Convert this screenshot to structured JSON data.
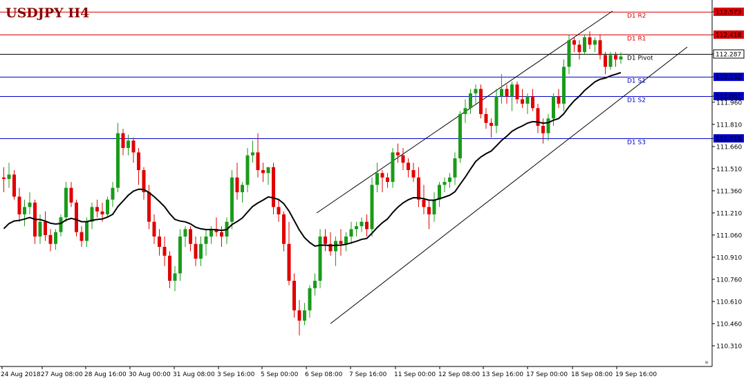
{
  "chart_data": {
    "type": "candlestick",
    "title": "USDJPY H4",
    "y_range": [
      110.2,
      112.63
    ],
    "y_ticks": [
      "112.573",
      "112.418",
      "112.287",
      "112.132",
      "112.001",
      "111.960",
      "111.810",
      "111.715",
      "111.660",
      "111.510",
      "111.360",
      "111.210",
      "111.060",
      "110.910",
      "110.760",
      "110.610",
      "110.460",
      "110.310"
    ],
    "x_ticks": [
      "24 Aug 2018",
      "27 Aug 08:00",
      "28 Aug 16:00",
      "30 Aug 00:00",
      "31 Aug 08:00",
      "3 Sep 16:00",
      "5 Sep 00:00",
      "6 Sep 08:00",
      "7 Sep 16:00",
      "11 Sep 00:00",
      "12 Sep 08:00",
      "13 Sep 16:00",
      "17 Sep 00:00",
      "18 Sep 08:00",
      "19 Sep 16:00"
    ],
    "levels": [
      {
        "name": "D1 R2",
        "value": 112.573,
        "color": "#dc0000",
        "label_color": "#dc0000"
      },
      {
        "name": "D1 R1",
        "value": 112.418,
        "color": "#dc0000",
        "label_color": "#dc0000"
      },
      {
        "name": "D1 Pivot",
        "value": 112.287,
        "color": "#000000",
        "label_color": "#000000"
      },
      {
        "name": "D1 S1",
        "value": 112.132,
        "color": "#0000c8",
        "label_color": "#0000c8"
      },
      {
        "name": "D1 S2",
        "value": 112.001,
        "color": "#0000c8",
        "label_color": "#0000c8"
      },
      {
        "name": "D1 S3",
        "value": 111.715,
        "color": "#0000c8",
        "label_color": "#0000c8"
      }
    ],
    "current_price": 112.287,
    "colors": {
      "bull": "#1a9b1a",
      "bear": "#e00000",
      "ma": "#000000",
      "channel": "#000000"
    },
    "candles": [
      {
        "o": 111.45,
        "h": 111.52,
        "l": 111.35,
        "c": 111.44
      },
      {
        "o": 111.44,
        "h": 111.55,
        "l": 111.38,
        "c": 111.47
      },
      {
        "o": 111.47,
        "h": 111.5,
        "l": 111.3,
        "c": 111.32
      },
      {
        "o": 111.32,
        "h": 111.38,
        "l": 111.15,
        "c": 111.2
      },
      {
        "o": 111.2,
        "h": 111.3,
        "l": 111.12,
        "c": 111.25
      },
      {
        "o": 111.25,
        "h": 111.35,
        "l": 111.2,
        "c": 111.28
      },
      {
        "o": 111.28,
        "h": 111.3,
        "l": 111.0,
        "c": 111.05
      },
      {
        "o": 111.05,
        "h": 111.2,
        "l": 111.0,
        "c": 111.15
      },
      {
        "o": 111.15,
        "h": 111.22,
        "l": 111.02,
        "c": 111.06
      },
      {
        "o": 111.06,
        "h": 111.1,
        "l": 110.95,
        "c": 111.0
      },
      {
        "o": 111.0,
        "h": 111.1,
        "l": 110.96,
        "c": 111.08
      },
      {
        "o": 111.08,
        "h": 111.2,
        "l": 111.05,
        "c": 111.18
      },
      {
        "o": 111.18,
        "h": 111.42,
        "l": 111.15,
        "c": 111.38
      },
      {
        "o": 111.38,
        "h": 111.42,
        "l": 111.25,
        "c": 111.28
      },
      {
        "o": 111.28,
        "h": 111.3,
        "l": 111.05,
        "c": 111.08
      },
      {
        "o": 111.08,
        "h": 111.12,
        "l": 110.98,
        "c": 111.02
      },
      {
        "o": 111.02,
        "h": 111.18,
        "l": 110.98,
        "c": 111.15
      },
      {
        "o": 111.15,
        "h": 111.28,
        "l": 111.1,
        "c": 111.25
      },
      {
        "o": 111.25,
        "h": 111.3,
        "l": 111.18,
        "c": 111.22
      },
      {
        "o": 111.22,
        "h": 111.28,
        "l": 111.15,
        "c": 111.2
      },
      {
        "o": 111.2,
        "h": 111.32,
        "l": 111.18,
        "c": 111.3
      },
      {
        "o": 111.3,
        "h": 111.42,
        "l": 111.25,
        "c": 111.38
      },
      {
        "o": 111.38,
        "h": 111.82,
        "l": 111.35,
        "c": 111.75
      },
      {
        "o": 111.75,
        "h": 111.78,
        "l": 111.6,
        "c": 111.65
      },
      {
        "o": 111.65,
        "h": 111.74,
        "l": 111.6,
        "c": 111.7
      },
      {
        "o": 111.7,
        "h": 111.72,
        "l": 111.55,
        "c": 111.62
      },
      {
        "o": 111.62,
        "h": 111.65,
        "l": 111.4,
        "c": 111.5
      },
      {
        "o": 111.5,
        "h": 111.52,
        "l": 111.3,
        "c": 111.35
      },
      {
        "o": 111.35,
        "h": 111.4,
        "l": 111.1,
        "c": 111.15
      },
      {
        "o": 111.15,
        "h": 111.2,
        "l": 111.0,
        "c": 111.05
      },
      {
        "o": 111.05,
        "h": 111.1,
        "l": 110.92,
        "c": 110.98
      },
      {
        "o": 110.98,
        "h": 111.05,
        "l": 110.85,
        "c": 110.92
      },
      {
        "o": 110.92,
        "h": 110.95,
        "l": 110.7,
        "c": 110.75
      },
      {
        "o": 110.75,
        "h": 110.85,
        "l": 110.68,
        "c": 110.8
      },
      {
        "o": 110.8,
        "h": 111.1,
        "l": 110.75,
        "c": 111.05
      },
      {
        "o": 111.05,
        "h": 111.12,
        "l": 110.98,
        "c": 111.1
      },
      {
        "o": 111.1,
        "h": 111.12,
        "l": 110.95,
        "c": 111.0
      },
      {
        "o": 111.0,
        "h": 111.05,
        "l": 110.85,
        "c": 110.9
      },
      {
        "o": 110.9,
        "h": 111.05,
        "l": 110.85,
        "c": 111.0
      },
      {
        "o": 111.0,
        "h": 111.1,
        "l": 110.92,
        "c": 111.05
      },
      {
        "o": 111.05,
        "h": 111.12,
        "l": 111.0,
        "c": 111.1
      },
      {
        "o": 111.1,
        "h": 111.18,
        "l": 111.05,
        "c": 111.08
      },
      {
        "o": 111.08,
        "h": 111.12,
        "l": 110.98,
        "c": 111.05
      },
      {
        "o": 111.05,
        "h": 111.18,
        "l": 111.0,
        "c": 111.15
      },
      {
        "o": 111.15,
        "h": 111.5,
        "l": 111.1,
        "c": 111.45
      },
      {
        "o": 111.45,
        "h": 111.55,
        "l": 111.3,
        "c": 111.35
      },
      {
        "o": 111.35,
        "h": 111.42,
        "l": 111.28,
        "c": 111.4
      },
      {
        "o": 111.4,
        "h": 111.65,
        "l": 111.35,
        "c": 111.6
      },
      {
        "o": 111.6,
        "h": 111.7,
        "l": 111.55,
        "c": 111.62
      },
      {
        "o": 111.62,
        "h": 111.75,
        "l": 111.45,
        "c": 111.5
      },
      {
        "o": 111.5,
        "h": 111.55,
        "l": 111.42,
        "c": 111.48
      },
      {
        "o": 111.48,
        "h": 111.52,
        "l": 111.4,
        "c": 111.52
      },
      {
        "o": 111.52,
        "h": 111.55,
        "l": 111.2,
        "c": 111.25
      },
      {
        "o": 111.25,
        "h": 111.3,
        "l": 111.15,
        "c": 111.2
      },
      {
        "o": 111.2,
        "h": 111.22,
        "l": 110.95,
        "c": 111.0
      },
      {
        "o": 111.0,
        "h": 111.15,
        "l": 110.72,
        "c": 110.75
      },
      {
        "o": 110.75,
        "h": 110.8,
        "l": 110.5,
        "c": 110.55
      },
      {
        "o": 110.55,
        "h": 110.62,
        "l": 110.38,
        "c": 110.48
      },
      {
        "o": 110.48,
        "h": 110.6,
        "l": 110.45,
        "c": 110.55
      },
      {
        "o": 110.55,
        "h": 110.72,
        "l": 110.5,
        "c": 110.7
      },
      {
        "o": 110.7,
        "h": 110.8,
        "l": 110.65,
        "c": 110.75
      },
      {
        "o": 110.75,
        "h": 111.1,
        "l": 110.7,
        "c": 111.05
      },
      {
        "o": 111.05,
        "h": 111.1,
        "l": 110.95,
        "c": 111.0
      },
      {
        "o": 111.0,
        "h": 111.08,
        "l": 110.92,
        "c": 110.95
      },
      {
        "o": 110.95,
        "h": 111.05,
        "l": 110.85,
        "c": 111.02
      },
      {
        "o": 111.02,
        "h": 111.1,
        "l": 110.92,
        "c": 111.0
      },
      {
        "o": 111.0,
        "h": 111.08,
        "l": 110.95,
        "c": 111.05
      },
      {
        "o": 111.05,
        "h": 111.15,
        "l": 111.0,
        "c": 111.1
      },
      {
        "o": 111.1,
        "h": 111.15,
        "l": 111.05,
        "c": 111.12
      },
      {
        "o": 111.12,
        "h": 111.18,
        "l": 111.08,
        "c": 111.15
      },
      {
        "o": 111.15,
        "h": 111.2,
        "l": 111.05,
        "c": 111.1
      },
      {
        "o": 111.1,
        "h": 111.45,
        "l": 111.05,
        "c": 111.4
      },
      {
        "o": 111.4,
        "h": 111.55,
        "l": 111.35,
        "c": 111.48
      },
      {
        "o": 111.48,
        "h": 111.5,
        "l": 111.35,
        "c": 111.45
      },
      {
        "o": 111.45,
        "h": 111.48,
        "l": 111.38,
        "c": 111.42
      },
      {
        "o": 111.42,
        "h": 111.65,
        "l": 111.38,
        "c": 111.62
      },
      {
        "o": 111.62,
        "h": 111.68,
        "l": 111.55,
        "c": 111.6
      },
      {
        "o": 111.6,
        "h": 111.65,
        "l": 111.5,
        "c": 111.55
      },
      {
        "o": 111.55,
        "h": 111.58,
        "l": 111.45,
        "c": 111.5
      },
      {
        "o": 111.5,
        "h": 111.55,
        "l": 111.42,
        "c": 111.45
      },
      {
        "o": 111.45,
        "h": 111.52,
        "l": 111.25,
        "c": 111.3
      },
      {
        "o": 111.3,
        "h": 111.4,
        "l": 111.2,
        "c": 111.25
      },
      {
        "o": 111.25,
        "h": 111.3,
        "l": 111.1,
        "c": 111.2
      },
      {
        "o": 111.2,
        "h": 111.35,
        "l": 111.15,
        "c": 111.3
      },
      {
        "o": 111.3,
        "h": 111.42,
        "l": 111.25,
        "c": 111.4
      },
      {
        "o": 111.4,
        "h": 111.45,
        "l": 111.35,
        "c": 111.42
      },
      {
        "o": 111.42,
        "h": 111.48,
        "l": 111.38,
        "c": 111.45
      },
      {
        "o": 111.45,
        "h": 111.62,
        "l": 111.4,
        "c": 111.58
      },
      {
        "o": 111.58,
        "h": 111.9,
        "l": 111.55,
        "c": 111.88
      },
      {
        "o": 111.88,
        "h": 111.98,
        "l": 111.82,
        "c": 111.92
      },
      {
        "o": 111.92,
        "h": 112.05,
        "l": 111.88,
        "c": 112.02
      },
      {
        "o": 112.02,
        "h": 112.08,
        "l": 111.95,
        "c": 112.05
      },
      {
        "o": 112.05,
        "h": 112.08,
        "l": 111.85,
        "c": 111.88
      },
      {
        "o": 111.88,
        "h": 111.92,
        "l": 111.78,
        "c": 111.82
      },
      {
        "o": 111.82,
        "h": 111.85,
        "l": 111.72,
        "c": 111.8
      },
      {
        "o": 111.8,
        "h": 112.05,
        "l": 111.75,
        "c": 112.0
      },
      {
        "o": 112.0,
        "h": 112.15,
        "l": 111.95,
        "c": 112.05
      },
      {
        "o": 112.05,
        "h": 112.08,
        "l": 111.95,
        "c": 112.0
      },
      {
        "o": 112.0,
        "h": 112.1,
        "l": 111.9,
        "c": 112.08
      },
      {
        "o": 112.08,
        "h": 112.1,
        "l": 111.95,
        "c": 111.98
      },
      {
        "o": 111.98,
        "h": 112.05,
        "l": 111.92,
        "c": 111.95
      },
      {
        "o": 111.95,
        "h": 112.02,
        "l": 111.88,
        "c": 112.0
      },
      {
        "o": 112.0,
        "h": 112.05,
        "l": 111.9,
        "c": 111.92
      },
      {
        "o": 111.92,
        "h": 111.95,
        "l": 111.75,
        "c": 111.8
      },
      {
        "o": 111.8,
        "h": 111.85,
        "l": 111.68,
        "c": 111.75
      },
      {
        "o": 111.75,
        "h": 111.88,
        "l": 111.7,
        "c": 111.85
      },
      {
        "o": 111.85,
        "h": 112.02,
        "l": 111.8,
        "c": 112.0
      },
      {
        "o": 112.0,
        "h": 112.05,
        "l": 111.92,
        "c": 111.95
      },
      {
        "o": 111.95,
        "h": 112.25,
        "l": 111.9,
        "c": 112.2
      },
      {
        "o": 112.2,
        "h": 112.42,
        "l": 112.15,
        "c": 112.38
      },
      {
        "o": 112.38,
        "h": 112.4,
        "l": 112.3,
        "c": 112.35
      },
      {
        "o": 112.35,
        "h": 112.38,
        "l": 112.25,
        "c": 112.3
      },
      {
        "o": 112.3,
        "h": 112.42,
        "l": 112.28,
        "c": 112.4
      },
      {
        "o": 112.4,
        "h": 112.44,
        "l": 112.32,
        "c": 112.35
      },
      {
        "o": 112.35,
        "h": 112.4,
        "l": 112.3,
        "c": 112.38
      },
      {
        "o": 112.38,
        "h": 112.42,
        "l": 112.25,
        "c": 112.28
      },
      {
        "o": 112.28,
        "h": 112.3,
        "l": 112.15,
        "c": 112.2
      },
      {
        "o": 112.2,
        "h": 112.3,
        "l": 112.18,
        "c": 112.28
      },
      {
        "o": 112.28,
        "h": 112.3,
        "l": 112.2,
        "c": 112.25
      },
      {
        "o": 112.25,
        "h": 112.3,
        "l": 112.22,
        "c": 112.27
      }
    ]
  }
}
